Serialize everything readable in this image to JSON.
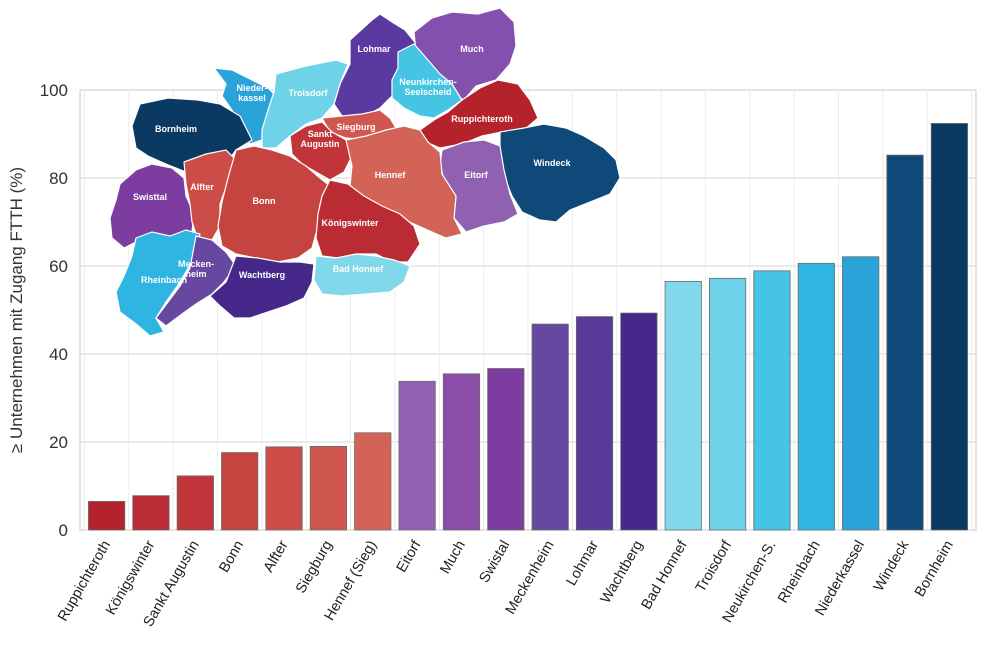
{
  "chart_data": {
    "type": "bar",
    "title": "",
    "xlabel": "",
    "ylabel": "≥ Unternehmen mit Zugang FTTH (%)",
    "ylim": [
      0,
      100
    ],
    "yticks": [
      0,
      20,
      40,
      60,
      80,
      100
    ],
    "grid": true,
    "categories": [
      "Ruppichteroth",
      "Königswinter",
      "Sankt Augustin",
      "Bonn",
      "Alfter",
      "Siegburg",
      "Hennef (Sieg)",
      "Eitorf",
      "Much",
      "Swistal",
      "Meckenheim",
      "Lohmar",
      "Wachtberg",
      "Bad Honnef",
      "Troisdorf",
      "Neukirchen-S.",
      "Rheinbach",
      "Niederkassel",
      "Windeck",
      "Bornheim"
    ],
    "values": [
      6.5,
      7.8,
      12.3,
      17.6,
      18.9,
      19.0,
      22.1,
      33.8,
      35.5,
      36.7,
      46.8,
      48.5,
      49.3,
      56.5,
      57.2,
      58.9,
      60.6,
      62.1,
      85.2,
      92.4
    ],
    "colors": [
      "#b4232c",
      "#bb2b33",
      "#c1353a",
      "#c64440",
      "#cc4d48",
      "#d0574f",
      "#d36356",
      "#9161b1",
      "#8a4ea8",
      "#7d3c9f",
      "#6748a0",
      "#573a9a",
      "#452889",
      "#80d8ea",
      "#6ed2e8",
      "#45c4e4",
      "#2fb5e1",
      "#2aa4d8",
      "#0f497a",
      "#0a3a62"
    ]
  },
  "map": {
    "regions": [
      {
        "name": "Lohmar",
        "label_lines": [
          "Lohmar"
        ],
        "color": "#5a3aa0"
      },
      {
        "name": "Much",
        "label_lines": [
          "Much"
        ],
        "color": "#8350ad"
      },
      {
        "name": "Niederkassel",
        "label_lines": [
          "Nieder-",
          "kassel"
        ],
        "color": "#2aa4d8"
      },
      {
        "name": "Troisdorf",
        "label_lines": [
          "Troisdorf"
        ],
        "color": "#6ed2e8"
      },
      {
        "name": "Neunkirchen-Seelscheid",
        "label_lines": [
          "Neunkirchen-",
          "Seelscheid"
        ],
        "color": "#45c4e4"
      },
      {
        "name": "Ruppichteroth",
        "label_lines": [
          "Ruppichteroth"
        ],
        "color": "#b4232c"
      },
      {
        "name": "Bornheim",
        "label_lines": [
          "Bornheim"
        ],
        "color": "#0a3a62"
      },
      {
        "name": "Siegburg",
        "label_lines": [
          "Siegburg"
        ],
        "color": "#d0574f"
      },
      {
        "name": "Sankt Augustin",
        "label_lines": [
          "Sankt",
          "Augustin"
        ],
        "color": "#c1353a"
      },
      {
        "name": "Windeck",
        "label_lines": [
          "Windeck"
        ],
        "color": "#0f497a"
      },
      {
        "name": "Eitorf",
        "label_lines": [
          "Eitorf"
        ],
        "color": "#9161b1"
      },
      {
        "name": "Hennef",
        "label_lines": [
          "Hennef"
        ],
        "color": "#d36356"
      },
      {
        "name": "Swisttal",
        "label_lines": [
          "Swisttal"
        ],
        "color": "#7d3c9f"
      },
      {
        "name": "Alfter",
        "label_lines": [
          "Alfter"
        ],
        "color": "#cc4d48"
      },
      {
        "name": "Bonn",
        "label_lines": [
          "Bonn"
        ],
        "color": "#c64440"
      },
      {
        "name": "Königswinter",
        "label_lines": [
          "Königswinter"
        ],
        "color": "#bb2b33"
      },
      {
        "name": "Bad Honnef",
        "label_lines": [
          "Bad Honnef"
        ],
        "color": "#80d8ea"
      },
      {
        "name": "Rheinbach",
        "label_lines": [
          "Rheinbach"
        ],
        "color": "#2fb5e1"
      },
      {
        "name": "Meckenheim",
        "label_lines": [
          "Mecken-",
          "heim"
        ],
        "color": "#6748a0"
      },
      {
        "name": "Wachtberg",
        "label_lines": [
          "Wachtberg"
        ],
        "color": "#452889"
      }
    ]
  }
}
